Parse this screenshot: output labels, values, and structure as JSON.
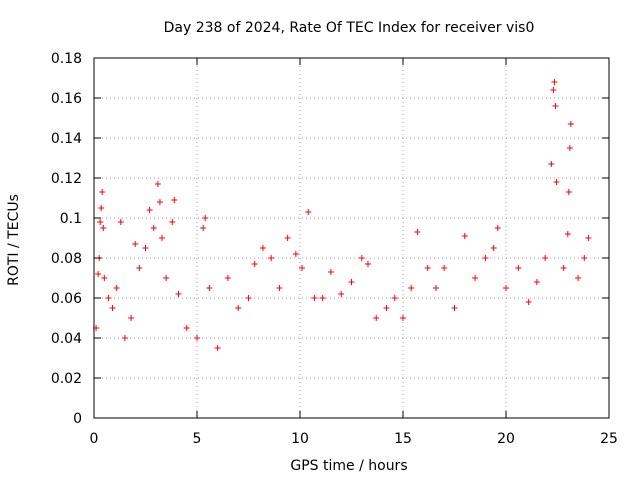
{
  "chart_data": {
    "type": "scatter",
    "title": "Day 238 of 2024, Rate Of TEC Index for receiver vis0",
    "xlabel": "GPS time / hours",
    "ylabel": "ROTI / TECUs",
    "xlim": [
      0,
      25
    ],
    "ylim": [
      0,
      0.18
    ],
    "xticks": [
      0,
      5,
      10,
      15,
      20,
      25
    ],
    "xtick_labels": [
      "0",
      "5",
      "10",
      "15",
      "20",
      "25"
    ],
    "yticks": [
      0,
      0.02,
      0.04,
      0.06,
      0.08,
      0.1,
      0.12,
      0.14,
      0.16,
      0.18
    ],
    "ytick_labels": [
      "0",
      "0.02",
      "0.04",
      "0.06",
      "0.08",
      "0.1",
      "0.12",
      "0.14",
      "0.16",
      "0.18"
    ],
    "grid": true,
    "marker": "+",
    "color": "#ff0000",
    "series": [
      {
        "points": [
          [
            0.1,
            0.045
          ],
          [
            0.2,
            0.072
          ],
          [
            0.25,
            0.08
          ],
          [
            0.3,
            0.098
          ],
          [
            0.35,
            0.105
          ],
          [
            0.4,
            0.113
          ],
          [
            0.45,
            0.095
          ],
          [
            0.5,
            0.07
          ],
          [
            0.7,
            0.06
          ],
          [
            0.9,
            0.055
          ],
          [
            1.1,
            0.065
          ],
          [
            1.3,
            0.098
          ],
          [
            1.5,
            0.04
          ],
          [
            1.8,
            0.05
          ],
          [
            2.0,
            0.087
          ],
          [
            2.2,
            0.075
          ],
          [
            2.5,
            0.085
          ],
          [
            2.7,
            0.104
          ],
          [
            2.9,
            0.095
          ],
          [
            3.1,
            0.117
          ],
          [
            3.2,
            0.108
          ],
          [
            3.3,
            0.09
          ],
          [
            3.5,
            0.07
          ],
          [
            3.8,
            0.098
          ],
          [
            3.9,
            0.109
          ],
          [
            4.1,
            0.062
          ],
          [
            4.5,
            0.045
          ],
          [
            5.0,
            0.04
          ],
          [
            5.3,
            0.095
          ],
          [
            5.4,
            0.1
          ],
          [
            5.6,
            0.065
          ],
          [
            6.0,
            0.035
          ],
          [
            6.5,
            0.07
          ],
          [
            7.0,
            0.055
          ],
          [
            7.5,
            0.06
          ],
          [
            7.8,
            0.077
          ],
          [
            8.2,
            0.085
          ],
          [
            8.6,
            0.08
          ],
          [
            9.0,
            0.065
          ],
          [
            9.4,
            0.09
          ],
          [
            9.8,
            0.082
          ],
          [
            10.1,
            0.075
          ],
          [
            10.4,
            0.103
          ],
          [
            10.7,
            0.06
          ],
          [
            11.1,
            0.06
          ],
          [
            11.5,
            0.073
          ],
          [
            12.0,
            0.062
          ],
          [
            12.5,
            0.068
          ],
          [
            13.0,
            0.08
          ],
          [
            13.3,
            0.077
          ],
          [
            13.7,
            0.05
          ],
          [
            14.2,
            0.055
          ],
          [
            14.6,
            0.06
          ],
          [
            15.0,
            0.05
          ],
          [
            15.4,
            0.065
          ],
          [
            15.7,
            0.093
          ],
          [
            16.2,
            0.075
          ],
          [
            16.6,
            0.065
          ],
          [
            17.0,
            0.075
          ],
          [
            17.5,
            0.055
          ],
          [
            18.0,
            0.091
          ],
          [
            18.5,
            0.07
          ],
          [
            19.0,
            0.08
          ],
          [
            19.4,
            0.085
          ],
          [
            19.6,
            0.095
          ],
          [
            20.0,
            0.065
          ],
          [
            20.6,
            0.075
          ],
          [
            21.1,
            0.058
          ],
          [
            21.5,
            0.068
          ],
          [
            21.9,
            0.08
          ],
          [
            22.2,
            0.127
          ],
          [
            22.3,
            0.164
          ],
          [
            22.35,
            0.168
          ],
          [
            22.4,
            0.156
          ],
          [
            22.45,
            0.118
          ],
          [
            22.8,
            0.075
          ],
          [
            23.0,
            0.092
          ],
          [
            23.05,
            0.113
          ],
          [
            23.1,
            0.135
          ],
          [
            23.15,
            0.147
          ],
          [
            23.5,
            0.07
          ],
          [
            23.8,
            0.08
          ],
          [
            24.0,
            0.09
          ]
        ]
      }
    ]
  }
}
